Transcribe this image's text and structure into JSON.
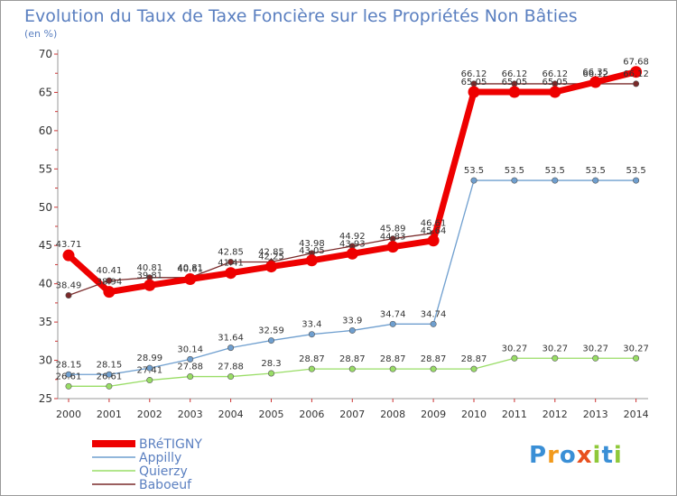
{
  "chart_data": {
    "type": "line",
    "title": "Evolution du Taux de Taxe Foncière sur les Propriétés Non Bâties",
    "subtitle": "(en %)",
    "xlabel": "",
    "ylabel": "(en %)",
    "ylim": [
      25,
      70
    ],
    "y_ticks": [
      25,
      30,
      35,
      40,
      45,
      50,
      55,
      60,
      65,
      70
    ],
    "categories": [
      "2000",
      "2001",
      "2002",
      "2003",
      "2004",
      "2005",
      "2006",
      "2007",
      "2008",
      "2009",
      "2010",
      "2011",
      "2012",
      "2013",
      "2014"
    ],
    "series": [
      {
        "name": "BRéTIGNY",
        "color": "#ee0000",
        "values": [
          43.71,
          38.94,
          39.81,
          40.61,
          41.41,
          42.25,
          43.05,
          43.93,
          44.83,
          45.64,
          65.05,
          65.05,
          65.05,
          66.35,
          67.68
        ],
        "labels": [
          "43.71",
          "38.94",
          "39.81",
          "40.61",
          "41.41",
          "42.25",
          "43.05",
          "43.93",
          "44.83",
          "45.64",
          "65.05",
          "65.05",
          "65.05",
          "66.35",
          "67.68"
        ]
      },
      {
        "name": "Appilly",
        "color": "#6f9fcf",
        "values": [
          28.15,
          28.15,
          28.99,
          30.14,
          31.64,
          32.59,
          33.4,
          33.9,
          34.74,
          34.74,
          53.5,
          53.5,
          53.5,
          53.5,
          53.5
        ],
        "labels": [
          "28.15",
          "28.15",
          "28.99",
          "30.14",
          "31.64",
          "32.59",
          "33.4",
          "33.9",
          "34.74",
          "34.74",
          "53.5",
          "53.5",
          "53.5",
          "53.5",
          "53.5"
        ]
      },
      {
        "name": "Quierzy",
        "color": "#99dd66",
        "values": [
          26.61,
          26.61,
          27.41,
          27.88,
          27.88,
          28.3,
          28.87,
          28.87,
          28.87,
          28.87,
          28.87,
          30.27,
          30.27,
          30.27,
          30.27
        ],
        "labels": [
          "26.61",
          "26.61",
          "27.41",
          "27.88",
          "27.88",
          "28.3",
          "28.87",
          "28.87",
          "28.87",
          "28.87",
          "28.87",
          "30.27",
          "30.27",
          "30.27",
          "30.27"
        ]
      },
      {
        "name": "Baboeuf",
        "color": "#7a2a2a",
        "values": [
          38.49,
          40.41,
          40.81,
          40.81,
          42.85,
          42.85,
          43.98,
          44.92,
          45.89,
          46.61,
          66.12,
          66.12,
          66.12,
          66.12,
          66.12
        ],
        "labels": [
          "38.49",
          "40.41",
          "40.81",
          "40.81",
          "42.85",
          "42.85",
          "43.98",
          "44.92",
          "45.89",
          "46.61",
          "66.12",
          "66.12",
          "66.12",
          "66.12",
          "66.12"
        ]
      }
    ],
    "grid": false,
    "legend": "bottom-left"
  },
  "logo": {
    "text": "Proxiti"
  }
}
